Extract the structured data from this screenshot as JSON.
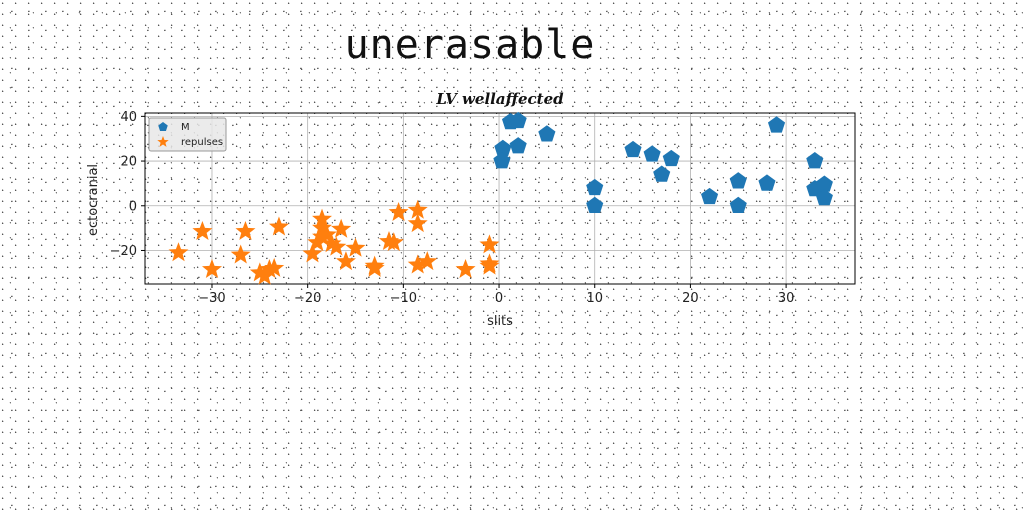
{
  "banner": "unerasable",
  "chart_data": {
    "type": "scatter",
    "title": "LV wellaffected",
    "xlabel": "slits",
    "ylabel": "ectocranial",
    "xlim": [
      -37,
      37.2
    ],
    "ylim": [
      -35,
      41.5
    ],
    "xticks": [
      -30,
      -20,
      -10,
      0,
      10,
      20,
      30
    ],
    "yticks": [
      -20,
      0,
      20,
      40
    ],
    "grid": true,
    "legend_position": "upper-left",
    "series": [
      {
        "name": "M",
        "marker": "pentagon",
        "color": "#1f77b4",
        "points": [
          [
            0.4,
            25.5
          ],
          [
            0.3,
            20.0
          ],
          [
            1.2,
            37.5
          ],
          [
            2.0,
            38.0
          ],
          [
            2.0,
            26.7
          ],
          [
            5.0,
            32.0
          ],
          [
            10.0,
            8.0
          ],
          [
            10.0,
            0.0
          ],
          [
            14.0,
            25.0
          ],
          [
            16.0,
            23.0
          ],
          [
            17.0,
            14.0
          ],
          [
            18.0,
            21.0
          ],
          [
            22.0,
            4.0
          ],
          [
            25.0,
            11.0
          ],
          [
            25.0,
            0.0
          ],
          [
            28.0,
            10.0
          ],
          [
            29.0,
            36.0
          ],
          [
            33.0,
            20.0
          ],
          [
            33.0,
            7.5
          ],
          [
            34.0,
            9.5
          ],
          [
            34.0,
            3.5
          ]
        ]
      },
      {
        "name": "repulses",
        "marker": "star",
        "color": "#ff7f0e",
        "points": [
          [
            -33.5,
            -21.0
          ],
          [
            -30.0,
            -28.5
          ],
          [
            -31.0,
            -11.5
          ],
          [
            -27.0,
            -22.0
          ],
          [
            -26.5,
            -11.5
          ],
          [
            -25.0,
            -30.0
          ],
          [
            -24.5,
            -31.5
          ],
          [
            -24.0,
            -28.5
          ],
          [
            -23.5,
            -28.0
          ],
          [
            -23.0,
            -9.5
          ],
          [
            -19.5,
            -21.5
          ],
          [
            -19.0,
            -16.5
          ],
          [
            -18.5,
            -6.0
          ],
          [
            -18.5,
            -10.0
          ],
          [
            -18.5,
            -14.0
          ],
          [
            -18.0,
            -13.0
          ],
          [
            -17.5,
            -17.0
          ],
          [
            -17.0,
            -18.5
          ],
          [
            -16.5,
            -10.5
          ],
          [
            -16.0,
            -25.0
          ],
          [
            -15.0,
            -19.0
          ],
          [
            -13.0,
            -27.0
          ],
          [
            -13.0,
            -28.0
          ],
          [
            -11.5,
            -16.0
          ],
          [
            -11.0,
            -16.5
          ],
          [
            -10.5,
            -3.0
          ],
          [
            -8.5,
            -8.0
          ],
          [
            -8.5,
            -2.0
          ],
          [
            -8.5,
            -26.5
          ],
          [
            -7.5,
            -25.0
          ],
          [
            -3.5,
            -28.5
          ],
          [
            -1.0,
            -26.0
          ],
          [
            -1.0,
            -27.0
          ],
          [
            -1.0,
            -17.5
          ]
        ]
      }
    ]
  }
}
